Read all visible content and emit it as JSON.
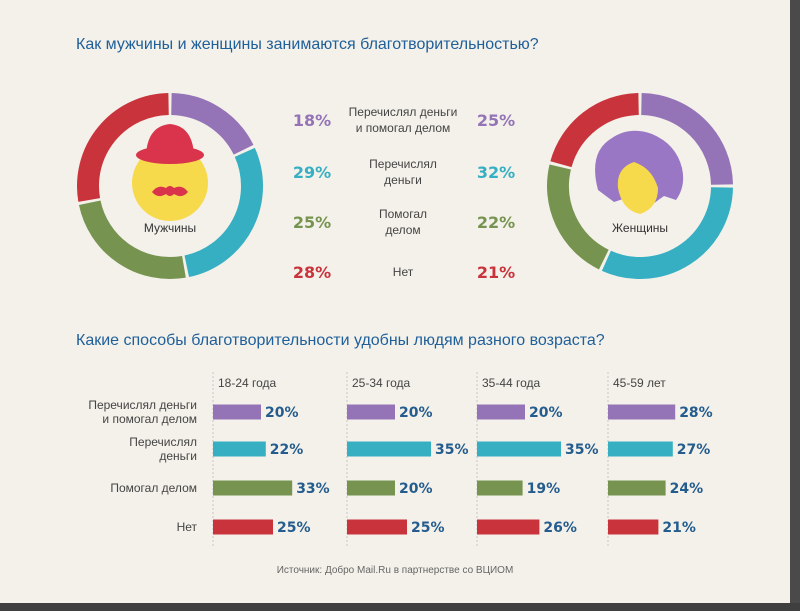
{
  "headings": {
    "gender": "Как мужчины и женщины занимаются благотворительностью?",
    "age": "Какие способы благотворительности удобны людям разного возраста?"
  },
  "source": "Источник: Добро Mail.Ru в партнерстве со ВЦИОМ",
  "colors": {
    "purple": "#9474b6",
    "teal": "#36afc2",
    "green": "#76944f",
    "red": "#c9343c",
    "value_blue": "#245c8e",
    "heading_blue": "#1f5f9a"
  },
  "icons": {
    "men": "man-with-hat-and-mustache-icon",
    "women": "woman-with-purple-hair-icon"
  },
  "chart_data": [
    {
      "type": "pie",
      "title": "Мужчины",
      "categories": [
        "Перечислял деньги и помогал делом",
        "Перечислял деньги",
        "Помогал делом",
        "Нет"
      ],
      "values": [
        18,
        29,
        25,
        28
      ],
      "labels": [
        "18%",
        "29%",
        "25%",
        "28%"
      ]
    },
    {
      "type": "pie",
      "title": "Женщины",
      "categories": [
        "Перечислял деньги и помогал делом",
        "Перечислял деньги",
        "Помогал делом",
        "Нет"
      ],
      "values": [
        25,
        32,
        22,
        21
      ],
      "labels": [
        "25%",
        "32%",
        "22%",
        "21%"
      ]
    },
    {
      "type": "bar",
      "orientation": "horizontal",
      "categories": [
        "Перечислял деньги и помогал делом",
        "Перечислял деньги",
        "Помогал делом",
        "Нет"
      ],
      "series": [
        {
          "name": "18-24 года",
          "values": [
            20,
            22,
            33,
            25
          ],
          "labels": [
            "20%",
            "22%",
            "33%",
            "25%"
          ]
        },
        {
          "name": "25-34 года",
          "values": [
            20,
            35,
            20,
            25
          ],
          "labels": [
            "20%",
            "35%",
            "20%",
            "25%"
          ]
        },
        {
          "name": "35-44 года",
          "values": [
            20,
            35,
            19,
            26
          ],
          "labels": [
            "20%",
            "35%",
            "19%",
            "26%"
          ]
        },
        {
          "name": "45-59 лет",
          "values": [
            28,
            27,
            24,
            21
          ],
          "labels": [
            "28%",
            "27%",
            "24%",
            "21%"
          ]
        }
      ]
    }
  ],
  "category_lines": [
    [
      "Перечислял деньги",
      "и помогал делом"
    ],
    [
      "Перечислял",
      "деньги"
    ],
    [
      "Помогал",
      "делом"
    ],
    [
      "Нет"
    ]
  ],
  "bar_category_lines": [
    [
      "Перечислял деньги",
      "и помогал делом"
    ],
    [
      "Перечислял",
      "деньги"
    ],
    [
      "Помогал делом"
    ],
    [
      "Нет"
    ]
  ]
}
